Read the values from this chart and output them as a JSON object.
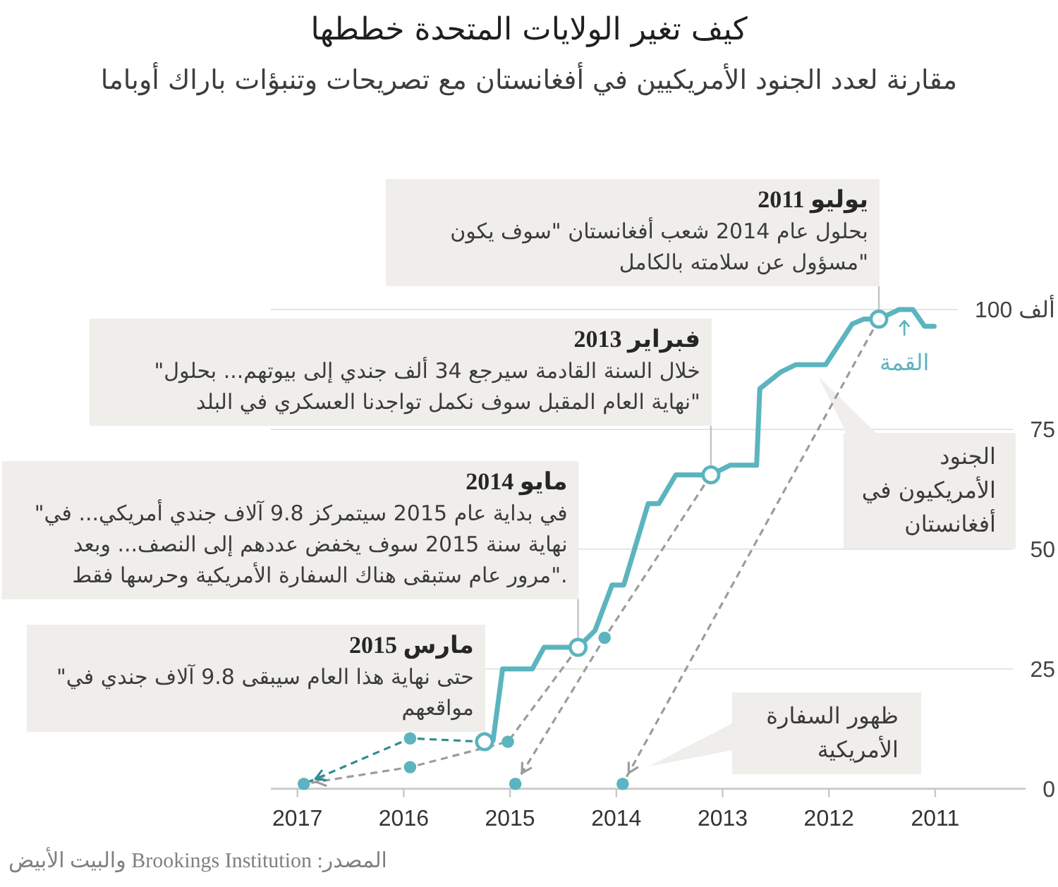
{
  "chart_data": {
    "type": "line",
    "title": "كيف تغير الولايات المتحدة خططها",
    "subtitle": "مقارنة لعدد الجنود الأمريكيين في أفغانستان مع تصريحات وتنبؤات باراك أوباما",
    "xlim": [
      2017.25,
      2010.15
    ],
    "xticks": [
      2017,
      2016,
      2015,
      2014,
      2013,
      2012,
      2011
    ],
    "ylim": [
      0,
      100
    ],
    "yticks": [
      0,
      25,
      50,
      75,
      {
        "value": 100,
        "label": "100 ألف"
      }
    ],
    "grid": "y",
    "series": [
      {
        "name": "الجنود الأمريكيون في أفغانستان",
        "type": "line",
        "color": "#5bb4be",
        "x": [
          2011.01,
          2011.1,
          2011.21,
          2011.34,
          2011.53,
          2011.67,
          2011.78,
          2012.03,
          2012.31,
          2012.45,
          2012.65,
          2012.68,
          2012.93,
          2013.11,
          2013.44,
          2013.6,
          2013.7,
          2013.93,
          2014.04,
          2014.2,
          2014.36,
          2014.68,
          2014.79,
          2015.07,
          2015.16,
          2015.24
        ],
        "values": [
          96.5,
          96.5,
          100,
          100,
          98,
          98,
          97,
          88.5,
          88.5,
          87,
          83.5,
          67.5,
          67.5,
          65.5,
          65.5,
          59.5,
          59.5,
          42.5,
          42.5,
          33,
          29.5,
          29.5,
          25,
          25,
          10,
          9.8
        ]
      },
      {
        "type": "line",
        "line_style": "dashed",
        "color": "#9c9c9c",
        "x": [
          2011.53,
          2013.94
        ],
        "values": [
          98,
          1
        ]
      },
      {
        "type": "line",
        "line_style": "dashed",
        "color": "#9c9c9c",
        "x": [
          2013.11,
          2014.11,
          2014.95
        ],
        "values": [
          65.5,
          31.5,
          1
        ]
      },
      {
        "type": "line",
        "line_style": "dashed",
        "color": "#9c9c9c",
        "x": [
          2014.36,
          2015.02,
          2015.94,
          2016.94
        ],
        "values": [
          29.5,
          9.8,
          4.5,
          1
        ]
      },
      {
        "type": "line",
        "line_style": "dashed",
        "color": "#2f8d92",
        "x": [
          2015.24,
          2015.94,
          2016.94
        ],
        "values": [
          9.8,
          10.5,
          1
        ]
      },
      {
        "type": "scatter",
        "marker": "circle",
        "color": "#5bb4be",
        "x": [
          2013.94,
          2014.11,
          2014.95,
          2015.02,
          2015.94,
          2015.94,
          2016.94
        ],
        "values": [
          1,
          31.5,
          1,
          9.8,
          4.5,
          10.5,
          1
        ]
      }
    ],
    "annotations": [
      {
        "text": "**يوليو 2011** بحلول عام 2014 شعب أفغانستان \"سوف يكون مسؤول عن سلامته بالكامل\"",
        "x": 2011.53,
        "y": 98
      },
      {
        "text": "**فبراير 2013** \"خلال السنة القادمة سيرجع 34 ألف جندي إلى بيوتهم... بحلول نهاية العام المقبل سوف نكمل تواجدنا العسكري في البلد\"",
        "x": 2013.11,
        "y": 65.5
      },
      {
        "text": "**مايو 2014** \"في بداية عام 2015 سيتمركز 9.8 آلاف جندي أمريكي... في نهاية سنة 2015 سوف يخفض عددهم إلى النصف... وبعد مرور عام ستبقى هناك السفارة الأمريكية وحرسها فقط\".",
        "x": 2014.36,
        "y": 29.5
      },
      {
        "text": "**مارس 2015** \"حتى نهاية هذا العام سيبقى 9.8 آلاف جندي في مواقعهم",
        "x": 2015.24,
        "y": 9.8
      },
      "ظهور السفارة الأمريكية",
      {
        "text": "القمة",
        "x": 2011.29,
        "y": 100
      },
      "المصدر: Brookings Institution والبيت الأبيض"
    ]
  }
}
